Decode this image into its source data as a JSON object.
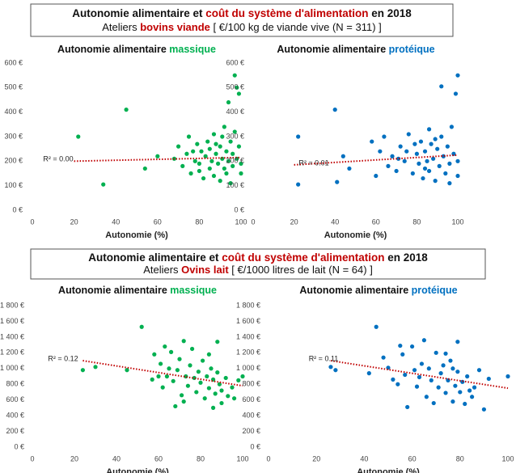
{
  "headers": [
    {
      "title_parts": [
        "Autonomie alimentaire et ",
        "coût du système d'alimentation",
        " en 2018"
      ],
      "subtitle_parts": [
        "Ateliers ",
        "bovins viande",
        " [ €/100 kg de viande vive (N = 311) ]"
      ]
    },
    {
      "title_parts": [
        "Autonomie alimentaire et ",
        "coût du système d'alimentation",
        " en 2018"
      ],
      "subtitle_parts": [
        "Ateliers ",
        "Ovins lait",
        " [ €/1000 litres de lait (N = 64) ]"
      ]
    }
  ],
  "chart_data": [
    {
      "type": "scatter",
      "title_parts": [
        "Autonomie alimentaire ",
        "massique"
      ],
      "title_color": "#00b050",
      "color": "#00b050",
      "x_label": "Autonomie (%)",
      "xlim": [
        0,
        100
      ],
      "xticks": [
        0,
        20,
        40,
        60,
        80,
        100
      ],
      "ylim": [
        0,
        600
      ],
      "yticks": [
        {
          "value": 0,
          "label": "0 €"
        },
        {
          "value": 100,
          "label": "100 €"
        },
        {
          "value": 200,
          "label": "200 €"
        },
        {
          "value": 300,
          "label": "300 €"
        },
        {
          "value": 400,
          "label": "400 €"
        },
        {
          "value": 500,
          "label": "500 €"
        },
        {
          "value": 600,
          "label": "600 €"
        }
      ],
      "grid": false,
      "x": [
        22,
        34,
        45,
        54,
        60,
        68,
        70,
        72,
        74,
        75,
        76,
        78,
        79,
        80,
        81,
        82,
        83,
        84,
        85,
        85,
        86,
        87,
        87,
        88,
        89,
        90,
        90,
        91,
        92,
        92,
        93,
        93,
        94,
        94,
        95,
        95,
        96,
        96,
        97,
        97,
        98,
        98,
        99,
        99,
        100,
        100,
        88,
        80,
        77,
        91
      ],
      "values": [
        300,
        105,
        410,
        170,
        220,
        210,
        260,
        180,
        230,
        300,
        150,
        200,
        270,
        190,
        240,
        130,
        220,
        280,
        170,
        250,
        200,
        310,
        140,
        230,
        190,
        260,
        120,
        210,
        340,
        170,
        240,
        150,
        440,
        200,
        280,
        110,
        230,
        180,
        550,
        320,
        500,
        210,
        475,
        260,
        190,
        150,
        270,
        160,
        240,
        300
      ],
      "trendline": {
        "color": "#c00000",
        "x": [
          20,
          100
        ],
        "values": [
          200,
          215
        ]
      },
      "annotation": "R² = 0.00"
    },
    {
      "type": "scatter",
      "title_parts": [
        "Autonomie alimentaire ",
        "protéique"
      ],
      "title_color": "#0070c0",
      "color": "#0070c0",
      "x_label": "Autonomie (%)",
      "xlim": [
        0,
        100
      ],
      "xticks": [
        0,
        20,
        40,
        60,
        80,
        100
      ],
      "ylim": [
        0,
        600
      ],
      "yticks": [
        {
          "value": 0,
          "label": "0 €"
        },
        {
          "value": 100,
          "label": "100 €"
        },
        {
          "value": 200,
          "label": "200 €"
        },
        {
          "value": 300,
          "label": "300 €"
        },
        {
          "value": 400,
          "label": "400 €"
        },
        {
          "value": 500,
          "label": "500 €"
        },
        {
          "value": 600,
          "label": "600 €"
        }
      ],
      "grid": false,
      "x": [
        22,
        22,
        40,
        41,
        44,
        47,
        58,
        60,
        62,
        64,
        66,
        68,
        70,
        72,
        74,
        76,
        78,
        80,
        81,
        82,
        83,
        84,
        85,
        86,
        86,
        87,
        88,
        89,
        90,
        91,
        92,
        92,
        93,
        94,
        95,
        96,
        97,
        98,
        99,
        100,
        100,
        100,
        75,
        79,
        84,
        89,
        71,
        96
      ],
      "values": [
        300,
        105,
        410,
        115,
        220,
        170,
        280,
        140,
        240,
        300,
        180,
        220,
        160,
        260,
        200,
        310,
        150,
        230,
        190,
        280,
        130,
        240,
        200,
        330,
        160,
        270,
        210,
        120,
        250,
        180,
        505,
        300,
        220,
        150,
        260,
        190,
        340,
        230,
        475,
        550,
        200,
        140,
        240,
        270,
        170,
        290,
        210,
        110
      ],
      "trendline": {
        "color": "#c00000",
        "x": [
          20,
          100
        ],
        "values": [
          185,
          225
        ]
      },
      "annotation": "R² = 0.01"
    },
    {
      "type": "scatter",
      "title_parts": [
        "Autonomie alimentaire ",
        "massique"
      ],
      "title_color": "#00b050",
      "color": "#00b050",
      "x_label": "Autonomie (%)",
      "xlim": [
        0,
        100
      ],
      "xticks": [
        0,
        20,
        40,
        60,
        80,
        100
      ],
      "ylim": [
        0,
        1800
      ],
      "yticks": [
        {
          "value": 0,
          "label": "0 €"
        },
        {
          "value": 200,
          "label": "200 €"
        },
        {
          "value": 400,
          "label": "400 €"
        },
        {
          "value": 600,
          "label": "600 €"
        },
        {
          "value": 800,
          "label": "800 €"
        },
        {
          "value": 1000,
          "label": "1 000 €"
        },
        {
          "value": 1200,
          "label": "1 200 €"
        },
        {
          "value": 1400,
          "label": "1 400 €"
        },
        {
          "value": 1600,
          "label": "1 600 €"
        },
        {
          "value": 1800,
          "label": "1 800 €"
        }
      ],
      "grid": false,
      "x": [
        24,
        30,
        45,
        52,
        58,
        60,
        61,
        62,
        63,
        64,
        66,
        67,
        68,
        69,
        70,
        71,
        72,
        73,
        74,
        75,
        76,
        77,
        78,
        79,
        80,
        81,
        82,
        83,
        84,
        85,
        86,
        86,
        87,
        88,
        88,
        89,
        90,
        90,
        92,
        93,
        95,
        96,
        98,
        100,
        57,
        65,
        72,
        84
      ],
      "values": [
        980,
        1020,
        980,
        1530,
        1180,
        900,
        1060,
        760,
        1280,
        900,
        1210,
        840,
        520,
        980,
        1120,
        660,
        1350,
        900,
        780,
        1040,
        1250,
        880,
        700,
        960,
        820,
        1100,
        620,
        900,
        750,
        1000,
        500,
        860,
        680,
        1340,
        950,
        800,
        560,
        720,
        880,
        650,
        760,
        620,
        850,
        900,
        860,
        1000,
        580,
        1180
      ],
      "trendline": {
        "color": "#c00000",
        "x": [
          24,
          100
        ],
        "values": [
          1100,
          780
        ]
      },
      "annotation": "R² = 0.12"
    },
    {
      "type": "scatter",
      "title_parts": [
        "Autonomie alimentaire ",
        "protéique"
      ],
      "title_color": "#0070c0",
      "color": "#0070c0",
      "x_label": "Autonomie (%)",
      "xlim": [
        0,
        100
      ],
      "xticks": [
        0,
        20,
        40,
        60,
        80,
        100
      ],
      "ylim": [
        0,
        1800
      ],
      "yticks": [
        {
          "value": 0,
          "label": "0 €"
        },
        {
          "value": 200,
          "label": "200 €"
        },
        {
          "value": 400,
          "label": "400 €"
        },
        {
          "value": 600,
          "label": "600 €"
        },
        {
          "value": 800,
          "label": "800 €"
        },
        {
          "value": 1000,
          "label": "1 000 €"
        },
        {
          "value": 1200,
          "label": "1 200 €"
        },
        {
          "value": 1400,
          "label": "1 400 €"
        },
        {
          "value": 1600,
          "label": "1 600 €"
        },
        {
          "value": 1800,
          "label": "1 800 €"
        }
      ],
      "grid": false,
      "x": [
        26,
        28,
        42,
        45,
        48,
        50,
        52,
        55,
        56,
        57,
        58,
        60,
        61,
        62,
        63,
        64,
        65,
        66,
        67,
        68,
        70,
        71,
        72,
        73,
        74,
        75,
        76,
        77,
        78,
        79,
        79,
        80,
        81,
        82,
        83,
        85,
        86,
        88,
        90,
        92,
        100,
        54,
        69,
        77,
        84,
        74
      ],
      "values": [
        1020,
        980,
        940,
        1530,
        1140,
        1010,
        860,
        1290,
        1180,
        920,
        510,
        1280,
        980,
        770,
        890,
        1060,
        1360,
        640,
        1000,
        850,
        1200,
        760,
        940,
        1040,
        690,
        850,
        1100,
        580,
        780,
        960,
        1340,
        700,
        830,
        550,
        900,
        640,
        760,
        980,
        480,
        870,
        900,
        800,
        560,
        1000,
        720,
        1190
      ],
      "trendline": {
        "color": "#c00000",
        "x": [
          26,
          100
        ],
        "values": [
          1100,
          750
        ]
      },
      "annotation": "R² = 0.11"
    }
  ]
}
